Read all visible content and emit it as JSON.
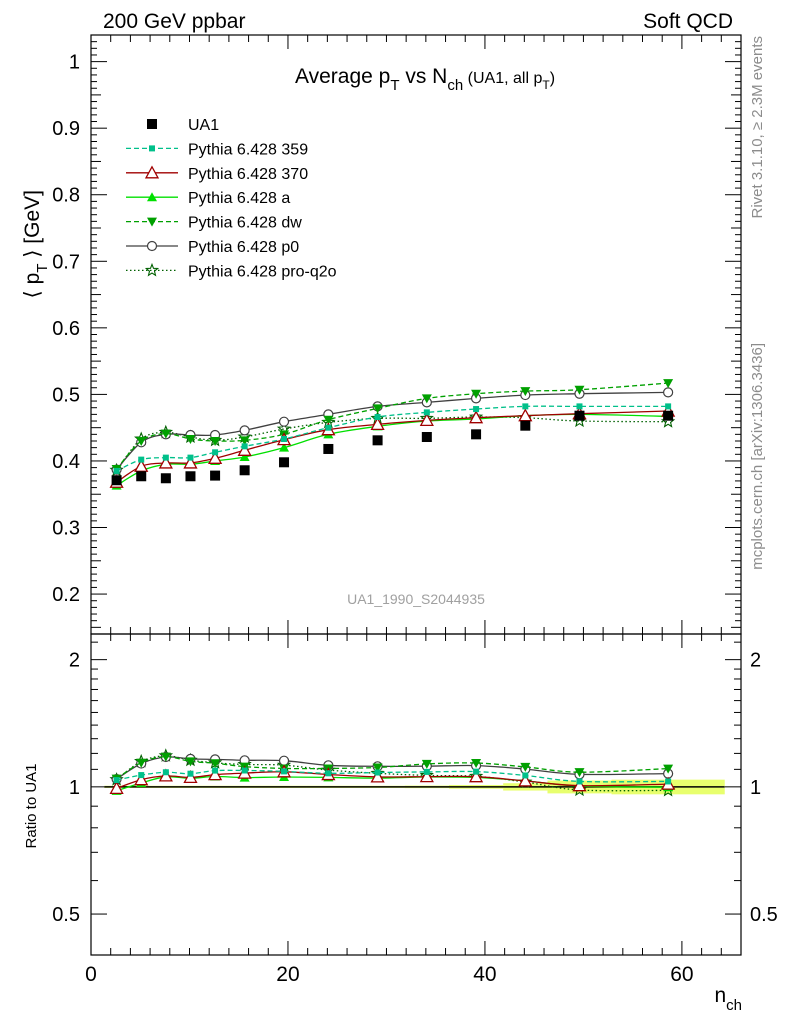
{
  "header": {
    "left": "200 GeV ppbar",
    "right": "Soft QCD"
  },
  "side_labels": {
    "rivet": "Rivet 3.1.10, ≥ 2.3M events",
    "mcplots": "mcplots.cern.ch [arXiv:1306.3436]"
  },
  "watermark": "UA1_1990_S2044935",
  "chart_data": [
    {
      "type": "scatter",
      "panel": "main",
      "title": {
        "prefix": "Average p",
        "sub1": "T",
        "mid": " vs N",
        "sub2": "ch",
        "small": " (UA1, all p",
        "sub3": "T",
        "close": ")"
      },
      "ylabel": {
        "pre": "⟨ p",
        "sub": "T",
        "post": " ⟩ [GeV]"
      },
      "xlabel": {
        "base": "n",
        "sub": "ch"
      },
      "xlim": [
        0,
        66
      ],
      "ylim": [
        0.14,
        1.04
      ],
      "yticks": [
        0.2,
        0.3,
        0.4,
        0.5,
        0.6,
        0.7,
        0.8,
        0.9,
        1
      ],
      "ytick_labels": [
        "0.2",
        "0.3",
        "0.4",
        "0.5",
        "0.6",
        "0.7",
        "0.8",
        "0.9",
        "1"
      ],
      "legend_position": "top-left",
      "x": [
        2.6,
        5.1,
        7.6,
        10.1,
        12.6,
        15.6,
        19.6,
        24.1,
        29.1,
        34.1,
        39.1,
        44.1,
        49.6,
        58.6
      ],
      "data": {
        "name": "UA1",
        "x": [
          2.6,
          5.1,
          7.6,
          10.1,
          12.6,
          15.6,
          19.6,
          24.1,
          29.1,
          34.1,
          39.1,
          44.1,
          49.6,
          58.6
        ],
        "y": [
          0.371,
          0.377,
          0.374,
          0.377,
          0.378,
          0.386,
          0.398,
          0.418,
          0.431,
          0.436,
          0.44,
          0.453,
          0.468,
          0.468
        ],
        "xerr": [
          1.25,
          1.25,
          1.25,
          1.25,
          1.25,
          1.75,
          2.25,
          2.25,
          2.75,
          2.25,
          2.75,
          2.25,
          3.25,
          5.75
        ]
      },
      "series": [
        {
          "name": "Pythia 6.428 359",
          "color": "#00c08a",
          "dash": "dashed",
          "marker": "filled-square",
          "y": [
            0.385,
            0.402,
            0.405,
            0.405,
            0.413,
            0.422,
            0.433,
            0.45,
            0.466,
            0.473,
            0.478,
            0.482,
            0.482,
            0.482
          ]
        },
        {
          "name": "Pythia 6.428 370",
          "color": "#a00000",
          "dash": "solid",
          "marker": "open-triangle",
          "y": [
            0.368,
            0.392,
            0.397,
            0.397,
            0.404,
            0.416,
            0.432,
            0.447,
            0.455,
            0.461,
            0.465,
            0.468,
            0.471,
            0.475
          ]
        },
        {
          "name": "Pythia 6.428 a",
          "color": "#00e000",
          "dash": "solid",
          "marker": "filled-triangle",
          "y": [
            0.363,
            0.385,
            0.395,
            0.395,
            0.4,
            0.406,
            0.42,
            0.44,
            0.452,
            0.46,
            0.463,
            0.468,
            0.47,
            0.467
          ]
        },
        {
          "name": "Pythia 6.428 dw",
          "color": "#00a000",
          "dash": "dashed",
          "marker": "filled-triangle-down",
          "y": [
            0.388,
            0.43,
            0.441,
            0.433,
            0.43,
            0.431,
            0.44,
            0.462,
            0.479,
            0.494,
            0.501,
            0.505,
            0.507,
            0.517
          ]
        },
        {
          "name": "Pythia 6.428 p0",
          "color": "#404040",
          "dash": "solid",
          "marker": "open-circle",
          "y": [
            0.387,
            0.428,
            0.44,
            0.439,
            0.439,
            0.446,
            0.459,
            0.47,
            0.482,
            0.488,
            0.494,
            0.499,
            0.501,
            0.503
          ]
        },
        {
          "name": "Pythia 6.428 pro-q2o",
          "color": "#006000",
          "dash": "dotted",
          "marker": "open-star",
          "y": [
            0.386,
            0.433,
            0.443,
            0.436,
            0.431,
            0.436,
            0.448,
            0.458,
            0.464,
            0.464,
            0.466,
            0.465,
            0.46,
            0.459
          ]
        }
      ]
    },
    {
      "type": "line",
      "panel": "ratio",
      "ylabel": "Ratio to UA1",
      "xlim": [
        0,
        66
      ],
      "ylim": [
        0.4,
        2.3
      ],
      "yscale": "log",
      "yticks": [
        0.5,
        1,
        2
      ],
      "ytick_labels": [
        "0.5",
        "1",
        "2"
      ],
      "xticks": [
        0,
        20,
        40,
        60
      ],
      "xtick_labels": [
        "0",
        "20",
        "40",
        "60"
      ],
      "reference": 1,
      "uncertainty_band": {
        "color": "#e8ff6e",
        "x_from": [
          1.35,
          3.85,
          6.35,
          8.85,
          11.35,
          13.85,
          17.35,
          21.85,
          26.35,
          31.85,
          36.35,
          41.85,
          46.35,
          52.85
        ],
        "x_to": [
          3.85,
          6.35,
          8.85,
          11.35,
          13.85,
          17.35,
          21.85,
          26.35,
          31.85,
          36.35,
          41.85,
          46.35,
          52.85,
          64.35
        ],
        "half_width": [
          0.006,
          0.006,
          0.006,
          0.006,
          0.006,
          0.006,
          0.006,
          0.006,
          0.006,
          0.007,
          0.01,
          0.02,
          0.035,
          0.04
        ]
      }
    }
  ]
}
